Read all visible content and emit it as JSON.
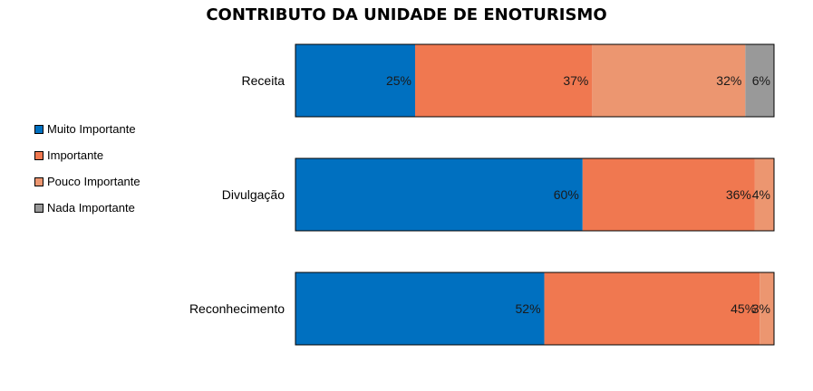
{
  "chart_data": {
    "type": "bar",
    "orientation": "horizontal",
    "stacked": "percent",
    "title": "CONTRIBUTO DA UNIDADE DE ENOTURISMO",
    "categories": [
      "Receita",
      "Divulgação",
      "Reconhecimento"
    ],
    "series": [
      {
        "name": "Muito Importante",
        "values": [
          25,
          60,
          52
        ],
        "labels": [
          "25%",
          "60%",
          "52%"
        ],
        "color": "#0070C0"
      },
      {
        "name": "Importante",
        "values": [
          37,
          36,
          45
        ],
        "labels": [
          "37%",
          "36%",
          "45%"
        ],
        "color": "#F07850"
      },
      {
        "name": "Pouco Importante",
        "values": [
          32,
          4,
          3
        ],
        "labels": [
          "32%",
          "4%",
          "3%"
        ],
        "color": "#EC9670"
      },
      {
        "name": "Nada Importante",
        "values": [
          6,
          0,
          0
        ],
        "labels": [
          "6%",
          "",
          ""
        ],
        "color": "#999999"
      }
    ],
    "xlim": [
      0,
      100
    ],
    "grid": false,
    "legend": "left"
  }
}
